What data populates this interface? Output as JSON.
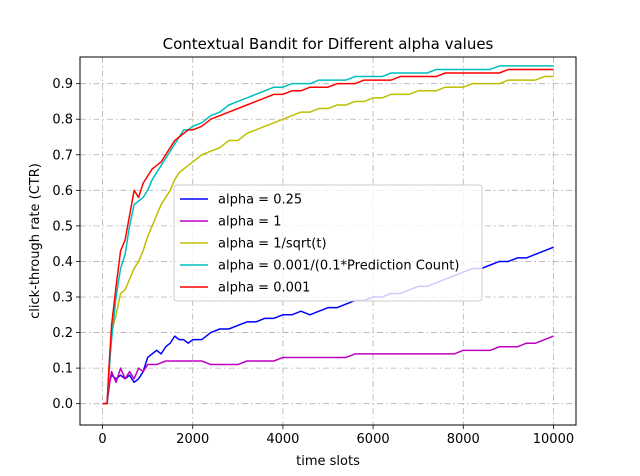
{
  "chart_data": {
    "type": "line",
    "title": "Contextual Bandit for Different alpha values",
    "xlabel": "time slots",
    "ylabel": "click-through rate (CTR)",
    "xlim": [
      -500,
      10500
    ],
    "ylim": [
      -0.06,
      0.975
    ],
    "x_ticks": [
      0,
      2000,
      4000,
      6000,
      8000,
      10000
    ],
    "x_tick_labels": [
      "0",
      "2000",
      "4000",
      "6000",
      "8000",
      "10000"
    ],
    "y_ticks": [
      0.0,
      0.1,
      0.2,
      0.3,
      0.4,
      0.5,
      0.6,
      0.7,
      0.8,
      0.9
    ],
    "y_tick_labels": [
      "0.0",
      "0.1",
      "0.2",
      "0.3",
      "0.4",
      "0.5",
      "0.6",
      "0.7",
      "0.8",
      "0.9"
    ],
    "grid": true,
    "legend_position": "center-right",
    "series": [
      {
        "name": "alpha = 0.25",
        "color": "#0000ff",
        "x": [
          0,
          100,
          150,
          200,
          300,
          400,
          500,
          600,
          700,
          800,
          900,
          1000,
          1100,
          1200,
          1300,
          1400,
          1500,
          1600,
          1700,
          1800,
          1900,
          2000,
          2200,
          2400,
          2600,
          2800,
          3000,
          3200,
          3400,
          3600,
          3800,
          4000,
          4200,
          4400,
          4600,
          4800,
          5000,
          5200,
          5400,
          5600,
          5800,
          6000,
          6200,
          6400,
          6600,
          6800,
          7000,
          7200,
          7400,
          7600,
          7800,
          8000,
          8200,
          8400,
          8600,
          8800,
          9000,
          9200,
          9400,
          9600,
          9800,
          10000
        ],
        "values": [
          0.0,
          0.0,
          0.06,
          0.08,
          0.07,
          0.08,
          0.07,
          0.08,
          0.06,
          0.07,
          0.09,
          0.13,
          0.14,
          0.15,
          0.14,
          0.16,
          0.17,
          0.19,
          0.18,
          0.18,
          0.17,
          0.18,
          0.18,
          0.2,
          0.21,
          0.21,
          0.22,
          0.23,
          0.23,
          0.24,
          0.24,
          0.25,
          0.25,
          0.26,
          0.25,
          0.26,
          0.27,
          0.27,
          0.28,
          0.29,
          0.29,
          0.3,
          0.3,
          0.31,
          0.31,
          0.32,
          0.33,
          0.33,
          0.34,
          0.35,
          0.36,
          0.37,
          0.38,
          0.38,
          0.39,
          0.4,
          0.4,
          0.41,
          0.41,
          0.42,
          0.43,
          0.44
        ]
      },
      {
        "name": "alpha = 1",
        "color": "#bf00bf",
        "x": [
          0,
          100,
          150,
          200,
          300,
          400,
          500,
          600,
          700,
          800,
          900,
          1000,
          1200,
          1400,
          1600,
          1800,
          2000,
          2200,
          2400,
          2600,
          2800,
          3000,
          3200,
          3400,
          3600,
          3800,
          4000,
          4200,
          4400,
          4600,
          4800,
          5000,
          5200,
          5400,
          5600,
          5800,
          6000,
          6200,
          6400,
          6600,
          6800,
          7000,
          7200,
          7400,
          7600,
          7800,
          8000,
          8200,
          8400,
          8600,
          8800,
          9000,
          9200,
          9400,
          9600,
          9800,
          10000
        ],
        "values": [
          0.0,
          0.0,
          0.05,
          0.09,
          0.06,
          0.1,
          0.07,
          0.09,
          0.07,
          0.1,
          0.09,
          0.11,
          0.11,
          0.12,
          0.12,
          0.12,
          0.12,
          0.12,
          0.11,
          0.11,
          0.11,
          0.11,
          0.12,
          0.12,
          0.12,
          0.12,
          0.13,
          0.13,
          0.13,
          0.13,
          0.13,
          0.13,
          0.13,
          0.13,
          0.14,
          0.14,
          0.14,
          0.14,
          0.14,
          0.14,
          0.14,
          0.14,
          0.14,
          0.14,
          0.14,
          0.14,
          0.15,
          0.15,
          0.15,
          0.15,
          0.16,
          0.16,
          0.16,
          0.17,
          0.17,
          0.18,
          0.19
        ]
      },
      {
        "name": "alpha = 1/sqrt(t)",
        "color": "#bfbf00",
        "x": [
          0,
          100,
          150,
          200,
          300,
          400,
          500,
          600,
          700,
          800,
          900,
          1000,
          1100,
          1200,
          1300,
          1400,
          1500,
          1600,
          1700,
          1800,
          1900,
          2000,
          2200,
          2400,
          2600,
          2800,
          3000,
          3200,
          3400,
          3600,
          3800,
          4000,
          4200,
          4400,
          4600,
          4800,
          5000,
          5200,
          5400,
          5600,
          5800,
          6000,
          6200,
          6400,
          6600,
          6800,
          7000,
          7200,
          7400,
          7600,
          7800,
          8000,
          8200,
          8400,
          8600,
          8800,
          9000,
          9200,
          9400,
          9600,
          9800,
          10000
        ],
        "values": [
          0.0,
          0.0,
          0.1,
          0.2,
          0.25,
          0.31,
          0.32,
          0.35,
          0.38,
          0.4,
          0.43,
          0.47,
          0.5,
          0.53,
          0.56,
          0.58,
          0.6,
          0.63,
          0.65,
          0.66,
          0.67,
          0.68,
          0.7,
          0.71,
          0.72,
          0.74,
          0.74,
          0.76,
          0.77,
          0.78,
          0.79,
          0.8,
          0.81,
          0.82,
          0.82,
          0.83,
          0.83,
          0.84,
          0.84,
          0.85,
          0.85,
          0.86,
          0.86,
          0.87,
          0.87,
          0.87,
          0.88,
          0.88,
          0.88,
          0.89,
          0.89,
          0.89,
          0.9,
          0.9,
          0.9,
          0.9,
          0.91,
          0.91,
          0.91,
          0.91,
          0.92,
          0.92
        ]
      },
      {
        "name": "alpha = 0.001/(0.1*Prediction Count)",
        "color": "#00bfbf",
        "x": [
          0,
          100,
          150,
          200,
          300,
          400,
          500,
          600,
          700,
          800,
          900,
          1000,
          1100,
          1200,
          1300,
          1400,
          1500,
          1600,
          1700,
          1800,
          1900,
          2000,
          2200,
          2400,
          2600,
          2800,
          3000,
          3200,
          3400,
          3600,
          3800,
          4000,
          4200,
          4400,
          4600,
          4800,
          5000,
          5200,
          5400,
          5600,
          5800,
          6000,
          6200,
          6400,
          6600,
          6800,
          7000,
          7200,
          7400,
          7600,
          7800,
          8000,
          8200,
          8400,
          8600,
          8800,
          9000,
          9200,
          9400,
          9600,
          9800,
          10000
        ],
        "values": [
          0.0,
          0.0,
          0.1,
          0.18,
          0.3,
          0.38,
          0.42,
          0.5,
          0.56,
          0.57,
          0.58,
          0.6,
          0.63,
          0.65,
          0.67,
          0.69,
          0.71,
          0.73,
          0.75,
          0.77,
          0.77,
          0.78,
          0.79,
          0.81,
          0.82,
          0.84,
          0.85,
          0.86,
          0.87,
          0.88,
          0.89,
          0.89,
          0.9,
          0.9,
          0.9,
          0.91,
          0.91,
          0.91,
          0.91,
          0.92,
          0.92,
          0.92,
          0.92,
          0.93,
          0.93,
          0.93,
          0.93,
          0.93,
          0.94,
          0.94,
          0.94,
          0.94,
          0.94,
          0.94,
          0.94,
          0.95,
          0.95,
          0.95,
          0.95,
          0.95,
          0.95,
          0.95
        ]
      },
      {
        "name": "alpha = 0.001",
        "color": "#ff0000",
        "x": [
          0,
          100,
          150,
          200,
          300,
          400,
          500,
          600,
          700,
          800,
          900,
          1000,
          1100,
          1200,
          1300,
          1400,
          1500,
          1600,
          1700,
          1800,
          1900,
          2000,
          2200,
          2400,
          2600,
          2800,
          3000,
          3200,
          3400,
          3600,
          3800,
          4000,
          4200,
          4400,
          4600,
          4800,
          5000,
          5200,
          5400,
          5600,
          5800,
          6000,
          6200,
          6400,
          6600,
          6800,
          7000,
          7200,
          7400,
          7600,
          7800,
          8000,
          8200,
          8400,
          8600,
          8800,
          9000,
          9200,
          9400,
          9600,
          9800,
          10000
        ],
        "values": [
          0.0,
          0.0,
          0.12,
          0.22,
          0.33,
          0.43,
          0.46,
          0.53,
          0.6,
          0.58,
          0.62,
          0.64,
          0.66,
          0.67,
          0.68,
          0.7,
          0.72,
          0.74,
          0.75,
          0.76,
          0.77,
          0.77,
          0.78,
          0.8,
          0.81,
          0.82,
          0.83,
          0.84,
          0.85,
          0.86,
          0.87,
          0.87,
          0.88,
          0.88,
          0.89,
          0.89,
          0.89,
          0.9,
          0.9,
          0.9,
          0.91,
          0.91,
          0.91,
          0.91,
          0.92,
          0.92,
          0.92,
          0.92,
          0.92,
          0.93,
          0.93,
          0.93,
          0.93,
          0.93,
          0.93,
          0.93,
          0.94,
          0.94,
          0.94,
          0.94,
          0.94,
          0.94
        ]
      }
    ]
  }
}
